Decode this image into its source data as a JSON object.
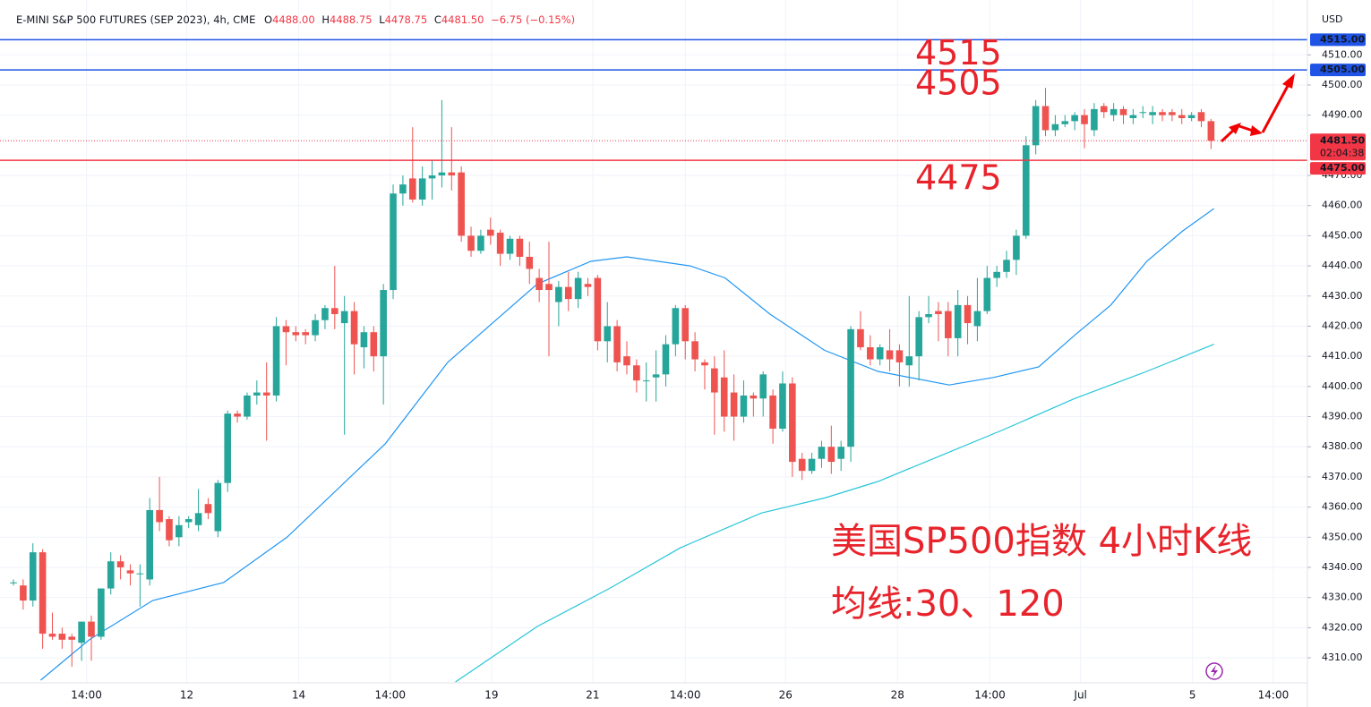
{
  "header": {
    "symbol": "E-MINI S&P 500 FUTURES (SEP 2023), 4h, CME",
    "ohlc": [
      {
        "label": "O",
        "text": "4488.00"
      },
      {
        "label": "H",
        "text": "4488.75"
      },
      {
        "label": "L",
        "text": "4478.75"
      },
      {
        "label": "C",
        "text": "4481.50"
      }
    ],
    "change": "−6.75 (−0.15%)"
  },
  "chart_data": {
    "type": "candlestick",
    "currency": "USD",
    "up_color": "#26a69a",
    "down_color": "#ef5350",
    "ylim": [
      4301.7,
      4526.7
    ],
    "xlim": [
      -1.38,
      132.9
    ],
    "grid": true,
    "yticks": [
      {
        "value": 4310,
        "label": "4310.00"
      },
      {
        "value": 4320,
        "label": "4320.00"
      },
      {
        "value": 4330,
        "label": "4330.00"
      },
      {
        "value": 4340,
        "label": "4340.00"
      },
      {
        "value": 4350,
        "label": "4350.00"
      },
      {
        "value": 4360,
        "label": "4360.00"
      },
      {
        "value": 4370,
        "label": "4370.00"
      },
      {
        "value": 4380,
        "label": "4380.00"
      },
      {
        "value": 4390,
        "label": "4390.00"
      },
      {
        "value": 4400,
        "label": "4400.00"
      },
      {
        "value": 4410,
        "label": "4410.00"
      },
      {
        "value": 4420,
        "label": "4420.00"
      },
      {
        "value": 4430,
        "label": "4430.00"
      },
      {
        "value": 4440,
        "label": "4440.00"
      },
      {
        "value": 4450,
        "label": "4450.00"
      },
      {
        "value": 4460,
        "label": "4460.00"
      },
      {
        "value": 4470,
        "label": "4470.00"
      },
      {
        "value": 4490,
        "label": "4490.00"
      },
      {
        "value": 4500,
        "label": "4500.00"
      },
      {
        "value": 4510,
        "label": "4510.00"
      }
    ],
    "xticks": [
      {
        "value": 7.5,
        "label": "14:00"
      },
      {
        "value": 17.8,
        "label": "12"
      },
      {
        "value": 29.3,
        "label": "14"
      },
      {
        "value": 38.7,
        "label": "14:00"
      },
      {
        "value": 49.1,
        "label": "19"
      },
      {
        "value": 59.5,
        "label": "21"
      },
      {
        "value": 69,
        "label": "14:00"
      },
      {
        "value": 79.3,
        "label": "26"
      },
      {
        "value": 90.8,
        "label": "28"
      },
      {
        "value": 100.3,
        "label": "14:00"
      },
      {
        "value": 109.6,
        "label": "Jul"
      },
      {
        "value": 121.1,
        "label": "5"
      },
      {
        "value": 129.4,
        "label": "14:00"
      }
    ],
    "candles": [
      [
        4335,
        4336,
        4334,
        4335
      ],
      [
        4334,
        4336,
        4326,
        4329
      ],
      [
        4329,
        4348,
        4327,
        4345
      ],
      [
        4345,
        4346,
        4313,
        4318
      ],
      [
        4318,
        4325,
        4316,
        4317
      ],
      [
        4318,
        4320,
        4313,
        4316
      ],
      [
        4317,
        4318,
        4307,
        4316
      ],
      [
        4315,
        4322,
        4309,
        4322
      ],
      [
        4322,
        4324,
        4309,
        4317
      ],
      [
        4317,
        4333,
        4316,
        4333
      ],
      [
        4333,
        4345,
        4331,
        4342
      ],
      [
        4342,
        4344,
        4336,
        4340
      ],
      [
        4339,
        4341,
        4334,
        4338
      ],
      [
        4338,
        4341,
        4327,
        4338
      ],
      [
        4336,
        4363,
        4334,
        4359
      ],
      [
        4359,
        4370,
        4352,
        4355
      ],
      [
        4356,
        4357,
        4347,
        4349
      ],
      [
        4350,
        4357,
        4347,
        4354
      ],
      [
        4355,
        4357,
        4353,
        4356
      ],
      [
        4354,
        4366,
        4352,
        4358
      ],
      [
        4361,
        4363,
        4356,
        4358
      ],
      [
        4352,
        4369,
        4350,
        4368
      ],
      [
        4368,
        4392,
        4365,
        4391
      ],
      [
        4391,
        4392,
        4388,
        4390
      ],
      [
        4390,
        4398,
        4389,
        4397
      ],
      [
        4397,
        4402,
        4394,
        4398
      ],
      [
        4398,
        4408,
        4382,
        4397
      ],
      [
        4397,
        4423,
        4395,
        4420
      ],
      [
        4420,
        4422,
        4407,
        4418
      ],
      [
        4418,
        4420,
        4415,
        4417
      ],
      [
        4418,
        4419,
        4414,
        4417
      ],
      [
        4417,
        4424,
        4415,
        4422
      ],
      [
        4422,
        4427,
        4419,
        4426
      ],
      [
        4426,
        4440,
        4419,
        4424
      ],
      [
        4421,
        4430,
        4384,
        4425
      ],
      [
        4425,
        4428,
        4404,
        4414
      ],
      [
        4413,
        4420,
        4406,
        4418
      ],
      [
        4418,
        4420,
        4405,
        4410
      ],
      [
        4410,
        4434,
        4394,
        4432
      ],
      [
        4432,
        4467,
        4429,
        4464
      ],
      [
        4464,
        4470,
        4460,
        4467
      ],
      [
        4469,
        4486,
        4461,
        4462
      ],
      [
        4462,
        4473,
        4460,
        4469
      ],
      [
        4469,
        4475,
        4462,
        4470
      ],
      [
        4470,
        4495,
        4466,
        4471
      ],
      [
        4471,
        4486,
        4465,
        4470
      ],
      [
        4471,
        4473,
        4448,
        4450
      ],
      [
        4450,
        4453,
        4443,
        4445
      ],
      [
        4445,
        4452,
        4444,
        4450
      ],
      [
        4452,
        4456,
        4447,
        4450
      ],
      [
        4451,
        4452,
        4440,
        4444
      ],
      [
        4444,
        4450,
        4442,
        4449
      ],
      [
        4449,
        4450,
        4440,
        4443
      ],
      [
        4443,
        4448,
        4434,
        4439
      ],
      [
        4436,
        4439,
        4428,
        4432
      ],
      [
        4434,
        4448,
        4410,
        4432
      ],
      [
        4428,
        4435,
        4420,
        4433
      ],
      [
        4433,
        4438,
        4425,
        4429
      ],
      [
        4429,
        4438,
        4426,
        4436
      ],
      [
        4434,
        4436,
        4430,
        4433
      ],
      [
        4436,
        4437,
        4412,
        4415
      ],
      [
        4415,
        4428,
        4408,
        4420
      ],
      [
        4420,
        4422,
        4405,
        4408
      ],
      [
        4410,
        4415,
        4404,
        4407
      ],
      [
        4407,
        4409,
        4398,
        4402
      ],
      [
        4402,
        4408,
        4395,
        4402
      ],
      [
        4403,
        4412,
        4395,
        4404
      ],
      [
        4404,
        4417,
        4400,
        4414
      ],
      [
        4414,
        4427,
        4410,
        4426
      ],
      [
        4426,
        4427,
        4409,
        4415
      ],
      [
        4415,
        4418,
        4405,
        4409
      ],
      [
        4408,
        4409,
        4399,
        4407
      ],
      [
        4406,
        4410,
        4384,
        4398
      ],
      [
        4403,
        4412,
        4385,
        4390
      ],
      [
        4398,
        4404,
        4382,
        4390
      ],
      [
        4390,
        4402,
        4388,
        4397
      ],
      [
        4397,
        4398,
        4390,
        4396
      ],
      [
        4396,
        4405,
        4390,
        4404
      ],
      [
        4397,
        4399,
        4381,
        4386
      ],
      [
        4386,
        4405,
        4385,
        4401
      ],
      [
        4401,
        4403,
        4370,
        4375
      ],
      [
        4376,
        4378,
        4369,
        4372
      ],
      [
        4372,
        4378,
        4371,
        4376
      ],
      [
        4376,
        4382,
        4373,
        4380
      ],
      [
        4380,
        4387,
        4371,
        4375
      ],
      [
        4376,
        4382,
        4372,
        4380
      ],
      [
        4380,
        4420,
        4375,
        4419
      ],
      [
        4419,
        4425,
        4412,
        4413
      ],
      [
        4413,
        4417,
        4407,
        4409
      ],
      [
        4409,
        4414,
        4407,
        4413
      ],
      [
        4412,
        4419,
        4405,
        4409
      ],
      [
        4412,
        4414,
        4400,
        4408
      ],
      [
        4407,
        4430,
        4400,
        4410
      ],
      [
        4410,
        4425,
        4402,
        4423
      ],
      [
        4423,
        4430,
        4421,
        4424
      ],
      [
        4425,
        4428,
        4415,
        4424
      ],
      [
        4425,
        4428,
        4410,
        4416
      ],
      [
        4416,
        4432,
        4410,
        4427
      ],
      [
        4427,
        4430,
        4414,
        4421
      ],
      [
        4420,
        4436,
        4415,
        4425
      ],
      [
        4425,
        4440,
        4424,
        4436
      ],
      [
        4436,
        4440,
        4433,
        4438
      ],
      [
        4438,
        4445,
        4436,
        4442
      ],
      [
        4442,
        4452,
        4437,
        4450
      ],
      [
        4450,
        4483,
        4449,
        4480
      ],
      [
        4480,
        4495,
        4477,
        4493
      ],
      [
        4493,
        4499,
        4483,
        4485
      ],
      [
        4485,
        4490,
        4483,
        4487
      ],
      [
        4487,
        4490,
        4486,
        4488
      ],
      [
        4488,
        4491,
        4485,
        4490
      ],
      [
        4490,
        4492,
        4479,
        4487
      ],
      [
        4485,
        4494,
        4483,
        4492
      ],
      [
        4493,
        4494,
        4489,
        4491
      ],
      [
        4490,
        4494,
        4488,
        4492
      ],
      [
        4492,
        4493,
        4487,
        4490
      ],
      [
        4489,
        4492,
        4487,
        4490
      ],
      [
        4491,
        4493,
        4489,
        4491
      ],
      [
        4490,
        4493,
        4487,
        4491
      ],
      [
        4491,
        4492,
        4488,
        4490
      ],
      [
        4491,
        4492,
        4488,
        4490
      ],
      [
        4490,
        4492,
        4487,
        4489
      ],
      [
        4489,
        4491,
        4488,
        4490
      ],
      [
        4491,
        4492,
        4486,
        4488
      ],
      [
        4488,
        4488.75,
        4478.75,
        4481.5
      ]
    ],
    "moving_averages": [
      {
        "color": "#2196f3",
        "x": [
          2.8,
          7.8,
          14.3,
          21.6,
          28.1,
          38.2,
          44.6,
          49.2,
          53.8,
          59.3,
          63,
          69.5,
          73.1,
          77.7,
          83.3,
          88.8,
          96.1,
          100.7,
          105.3,
          109,
          112.7,
          116.4,
          120.1,
          123.3
        ],
        "values": [
          4302.6,
          4316,
          4329,
          4335,
          4350,
          4381,
          4408,
          4421,
          4434,
          4441.5,
          4443,
          4440,
          4436,
          4424,
          4412,
          4405,
          4400.5,
          4403,
          4406.5,
          4417,
          4427,
          4441.5,
          4451.6,
          4459
        ]
      },
      {
        "color": "#26c6da",
        "x": [
          45.4,
          53.8,
          61.2,
          68.5,
          76.8,
          83.3,
          88.8,
          95.2,
          101.7,
          109,
          116.4,
          123.3
        ],
        "values": [
          4302,
          4320.4,
          4333,
          4346.5,
          4358,
          4363,
          4368.5,
          4377,
          4385.7,
          4396,
          4405,
          4414
        ]
      }
    ],
    "hlines": [
      {
        "value": 4515,
        "label": "4515.00",
        "color": "#1e53e5",
        "text": "4515"
      },
      {
        "value": 4505,
        "label": "4505.00",
        "color": "#1e53e5",
        "text": "4505"
      },
      {
        "value": 4475,
        "label": "4475.00",
        "color": "#f23645",
        "text": "4475"
      }
    ],
    "last": {
      "value": 4481.5,
      "label": "4481.50",
      "countdown": "02:04:38",
      "color": "#f23645"
    },
    "annotations": [
      "美国SP500指数 4小时K线",
      "均线:30、120"
    ]
  }
}
